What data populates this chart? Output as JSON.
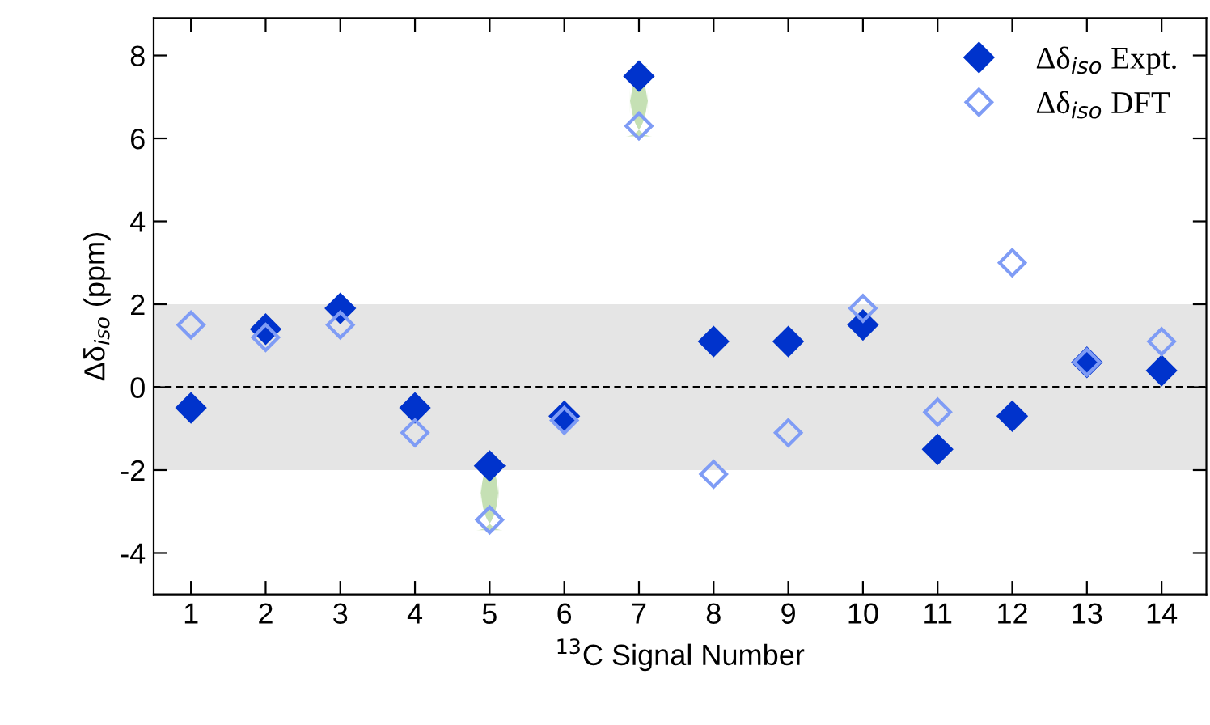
{
  "chart_data": {
    "type": "scatter",
    "xlabel": "$^{13}$C Signal Number",
    "ylabel": "Δδ$_{iso}$ (ppm)",
    "x": [
      1,
      2,
      3,
      4,
      5,
      6,
      7,
      8,
      9,
      10,
      11,
      12,
      13,
      14
    ],
    "series": [
      {
        "name": "Δδ$_{iso}$ Expt.",
        "color": "#0033cc",
        "marker": "diamond",
        "values": [
          -0.5,
          1.4,
          1.9,
          -0.5,
          -1.9,
          -0.7,
          7.5,
          1.1,
          1.1,
          1.5,
          -1.5,
          -0.7,
          0.6,
          0.4
        ]
      },
      {
        "name": "Δδ$_{iso}$ DFT",
        "color": "#7f9cf5",
        "marker": "diamond",
        "values": [
          1.5,
          1.2,
          1.5,
          -1.1,
          -3.2,
          -0.8,
          6.3,
          -2.1,
          -1.1,
          1.9,
          -0.6,
          3.0,
          0.6,
          1.1
        ]
      }
    ],
    "xlim": [
      0.5,
      14.6
    ],
    "ylim": [
      -5,
      8.9
    ],
    "xticks": [
      1,
      2,
      3,
      4,
      5,
      6,
      7,
      8,
      9,
      10,
      11,
      12,
      13,
      14
    ],
    "yticks": [
      -4,
      -2,
      0,
      2,
      4,
      6,
      8
    ],
    "ref_lines": [
      {
        "axis": "y",
        "value": 0,
        "color": "#000000",
        "line_style": "dashed"
      }
    ],
    "bands": [
      {
        "axis": "y",
        "from": -2,
        "to": 2,
        "color": "#e5e5e5"
      }
    ],
    "grid": false,
    "legend": "top right"
  }
}
